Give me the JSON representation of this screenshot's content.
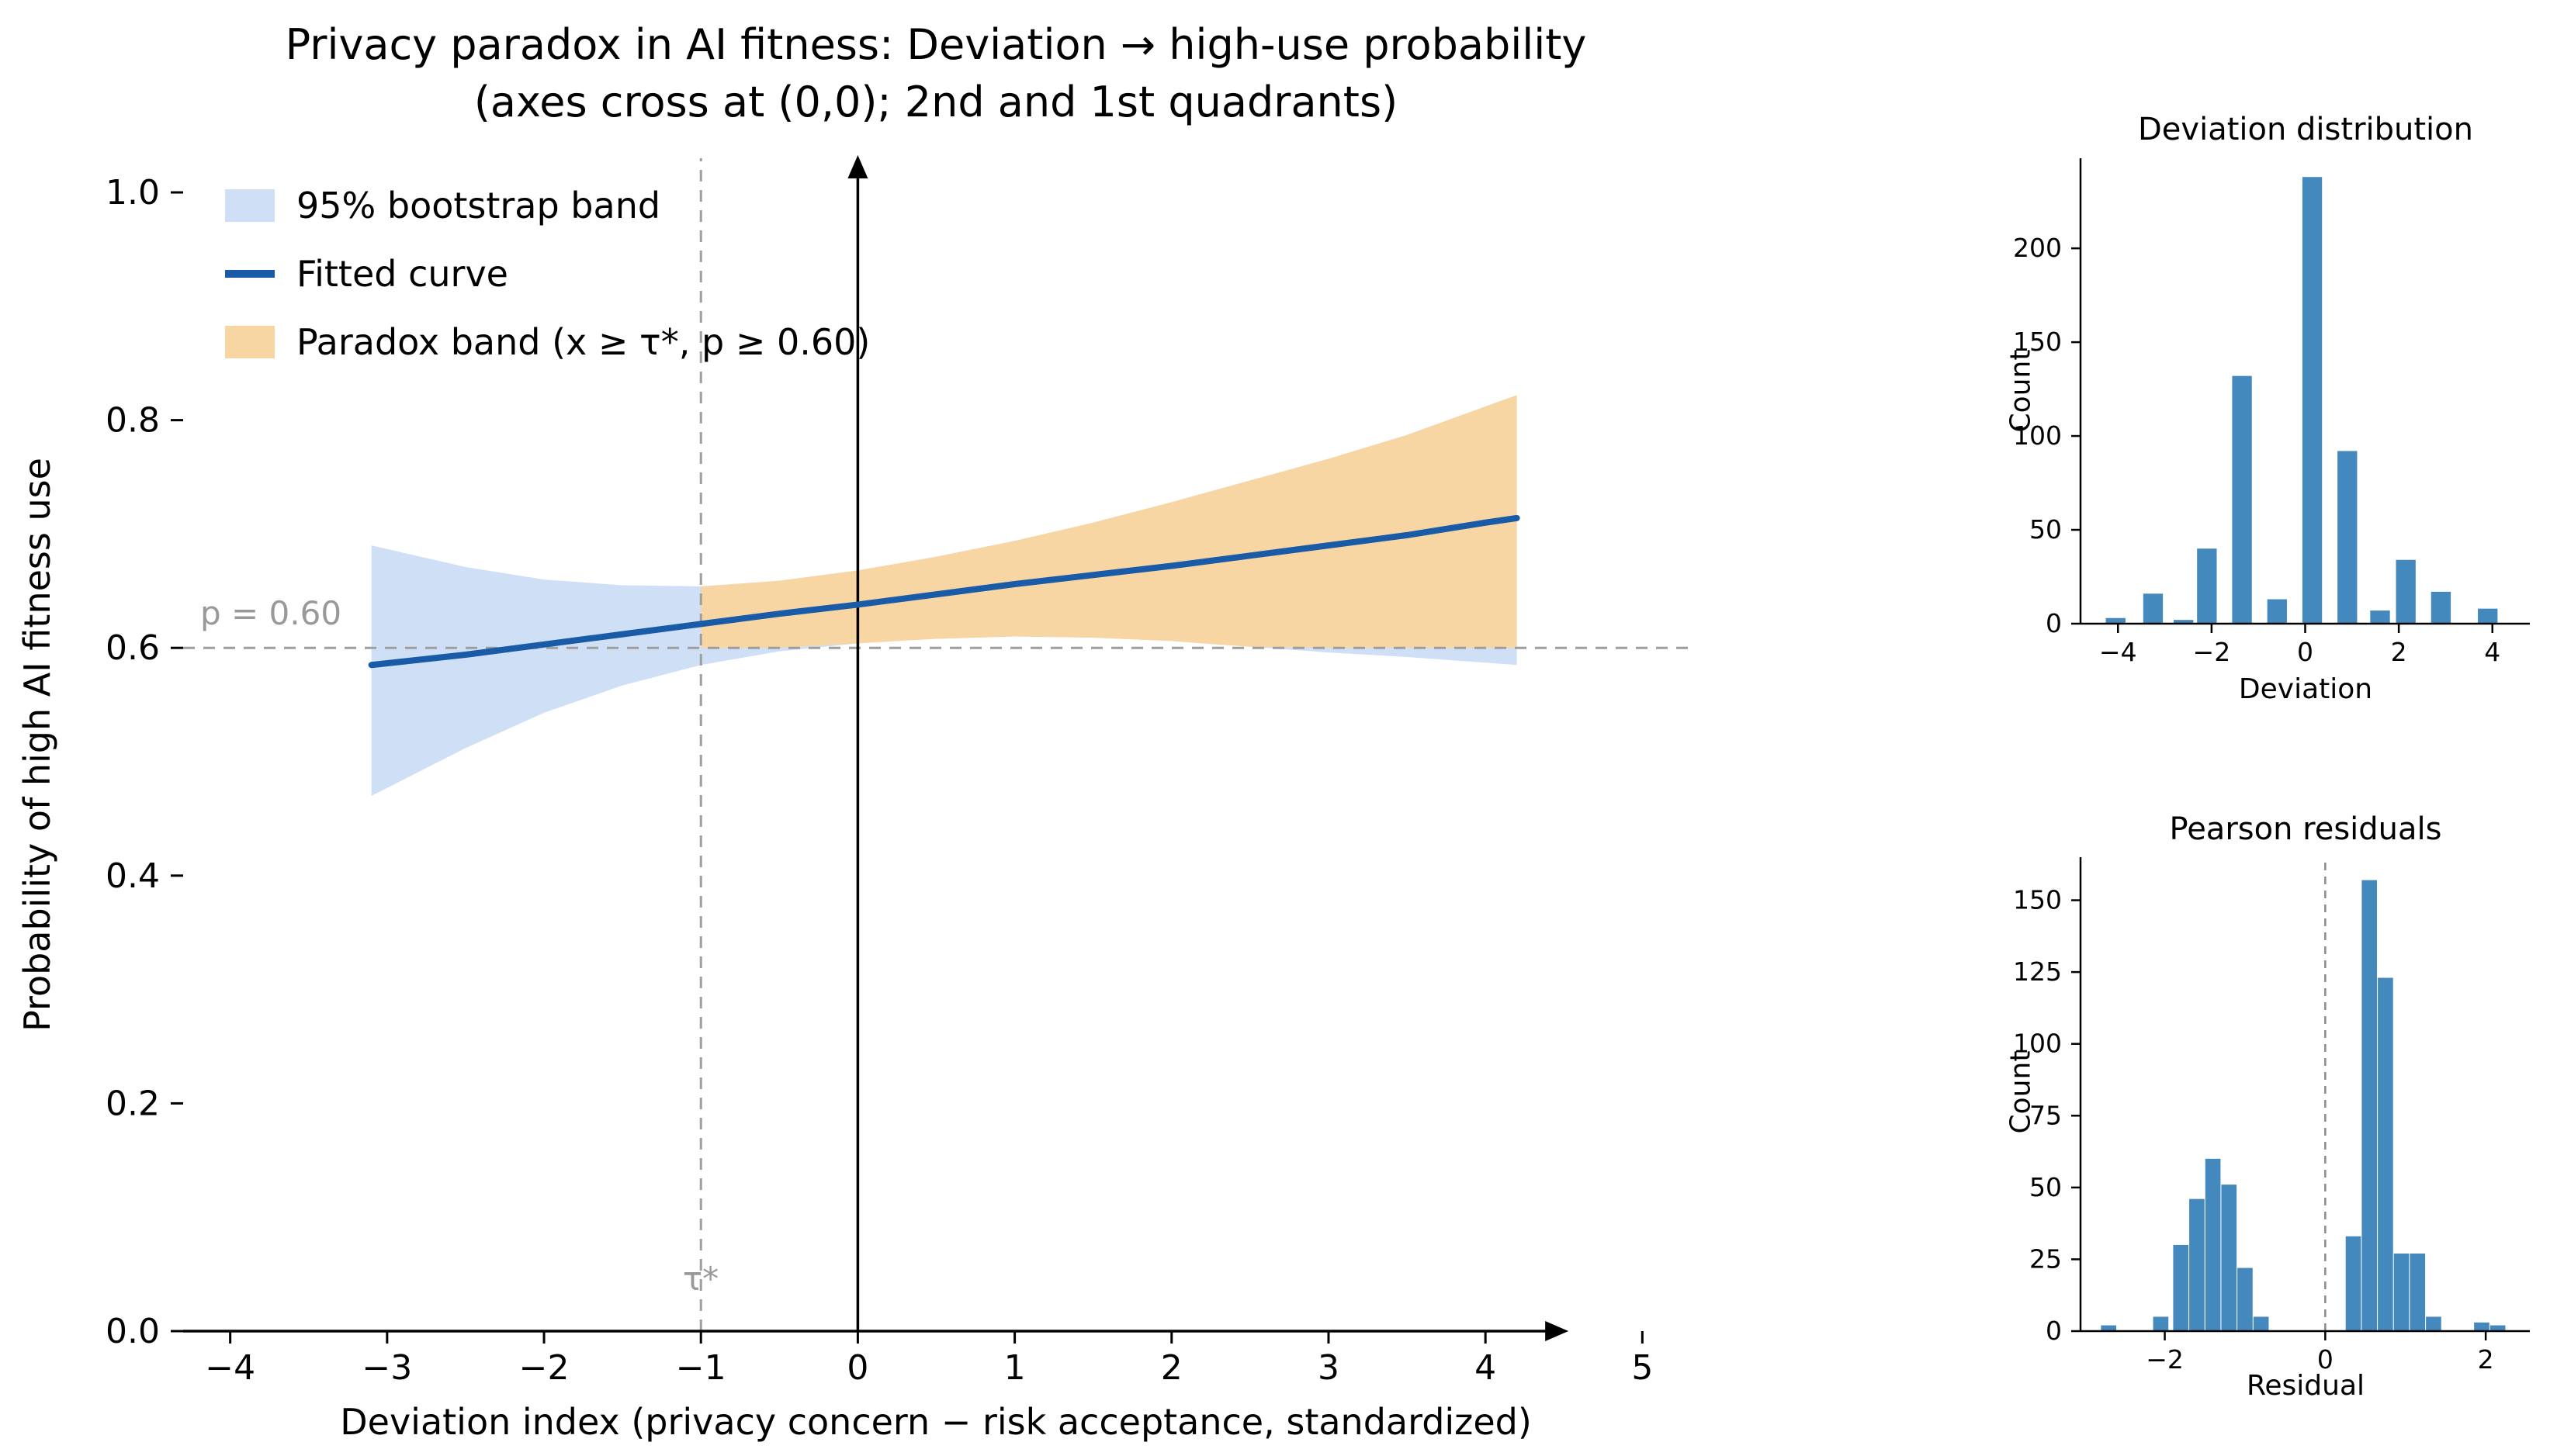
{
  "figure": {
    "background": "#ffffff",
    "text_color": "#000000"
  },
  "chart_data": [
    {
      "id": "main-curve",
      "type": "line",
      "title": "Privacy paradox in AI fitness: Deviation → high-use probability",
      "subtitle": "(axes cross at (0,0); 2nd and 1st quadrants)",
      "xlabel": "Deviation index (privacy concern − risk acceptance, standardized)",
      "ylabel": "Probability of high AI fitness use",
      "p_label": "p = 0.60",
      "tau_label": "τ*",
      "xlim": [
        -4.3,
        5.3
      ],
      "ylim": [
        0,
        1.03
      ],
      "xticks": [
        {
          "v": -4,
          "l": "−4"
        },
        {
          "v": -3,
          "l": "−3"
        },
        {
          "v": -2,
          "l": "−2"
        },
        {
          "v": -1,
          "l": "−1"
        },
        {
          "v": 0,
          "l": "0"
        },
        {
          "v": 1,
          "l": "1"
        },
        {
          "v": 2,
          "l": "2"
        },
        {
          "v": 3,
          "l": "3"
        },
        {
          "v": 4,
          "l": "4"
        },
        {
          "v": 5,
          "l": "5"
        }
      ],
      "yticks": [
        {
          "v": 0.0,
          "l": "0.0"
        },
        {
          "v": 0.2,
          "l": "0.2"
        },
        {
          "v": 0.4,
          "l": "0.4"
        },
        {
          "v": 0.6,
          "l": "0.6"
        },
        {
          "v": 0.8,
          "l": "0.8"
        },
        {
          "v": 1.0,
          "l": "1.0"
        }
      ],
      "threshold_x": -1.0,
      "p_threshold": 0.6,
      "axis_arrow_x_end": 4.45,
      "x": [
        -3.1,
        -2.5,
        -2.0,
        -1.5,
        -1.0,
        -0.5,
        0.0,
        0.5,
        1.0,
        1.5,
        2.0,
        2.5,
        3.0,
        3.5,
        4.0,
        4.2
      ],
      "fit": [
        0.585,
        0.594,
        0.603,
        0.612,
        0.621,
        0.63,
        0.638,
        0.647,
        0.656,
        0.664,
        0.672,
        0.681,
        0.69,
        0.699,
        0.71,
        0.714
      ],
      "band_lower": [
        0.47,
        0.512,
        0.543,
        0.567,
        0.585,
        0.597,
        0.604,
        0.608,
        0.61,
        0.609,
        0.606,
        0.601,
        0.596,
        0.592,
        0.587,
        0.585
      ],
      "band_upper": [
        0.69,
        0.671,
        0.66,
        0.655,
        0.654,
        0.659,
        0.668,
        0.68,
        0.694,
        0.71,
        0.728,
        0.747,
        0.766,
        0.787,
        0.812,
        0.822
      ],
      "legend": [
        {
          "type": "band",
          "label": "95% bootstrap band",
          "color": "#cfe0f6"
        },
        {
          "type": "line",
          "label": "Fitted curve",
          "color": "#1a5ba8"
        },
        {
          "type": "band",
          "label": "Paradox band (x ≥ τ*, p ≥ 0.60)",
          "color": "#f8d6a4"
        }
      ],
      "colors": {
        "band": "#cfe0f6",
        "curve": "#1a5ba8",
        "paradox": "#f8d6a4",
        "dashed": "#9e9e9e",
        "gray_text": "#999999",
        "axis": "#000000"
      }
    },
    {
      "id": "deviation-histogram",
      "type": "bar",
      "title": "Deviation distribution",
      "xlabel": "Deviation",
      "ylabel": "Count",
      "xlim": [
        -4.8,
        4.8
      ],
      "ylim": [
        0,
        248
      ],
      "xticks": [
        {
          "v": -4,
          "l": "−4"
        },
        {
          "v": -2,
          "l": "−2"
        },
        {
          "v": 0,
          "l": "0"
        },
        {
          "v": 2,
          "l": "2"
        },
        {
          "v": 4,
          "l": "4"
        }
      ],
      "yticks": [
        {
          "v": 0,
          "l": "0"
        },
        {
          "v": 50,
          "l": "50"
        },
        {
          "v": 100,
          "l": "100"
        },
        {
          "v": 150,
          "l": "150"
        },
        {
          "v": 200,
          "l": "200"
        }
      ],
      "bar_width": 0.42,
      "bars": [
        [
          -4.05,
          3
        ],
        [
          -3.25,
          16
        ],
        [
          -2.6,
          2
        ],
        [
          -2.1,
          40
        ],
        [
          -1.35,
          132
        ],
        [
          -0.6,
          13
        ],
        [
          0.15,
          238
        ],
        [
          0.9,
          92
        ],
        [
          1.6,
          7
        ],
        [
          2.15,
          34
        ],
        [
          2.9,
          17
        ],
        [
          3.9,
          8
        ]
      ],
      "color": "#4489bd"
    },
    {
      "id": "pearson-residuals-histogram",
      "type": "bar",
      "title": "Pearson residuals",
      "xlabel": "Residual",
      "ylabel": "Count",
      "xlim": [
        -3.05,
        2.55
      ],
      "ylim": [
        0,
        165
      ],
      "xticks": [
        {
          "v": -2,
          "l": "−2"
        },
        {
          "v": 0,
          "l": "0"
        },
        {
          "v": 2,
          "l": "2"
        }
      ],
      "yticks": [
        {
          "v": 0,
          "l": "0"
        },
        {
          "v": 25,
          "l": "25"
        },
        {
          "v": 50,
          "l": "50"
        },
        {
          "v": 75,
          "l": "75"
        },
        {
          "v": 100,
          "l": "100"
        },
        {
          "v": 125,
          "l": "125"
        },
        {
          "v": 150,
          "l": "150"
        }
      ],
      "bar_width": 0.19,
      "vline_x": 0,
      "bars": [
        [
          -2.7,
          2
        ],
        [
          -2.05,
          5
        ],
        [
          -1.8,
          30
        ],
        [
          -1.6,
          46
        ],
        [
          -1.4,
          60
        ],
        [
          -1.2,
          51
        ],
        [
          -1.0,
          22
        ],
        [
          -0.8,
          5
        ],
        [
          0.35,
          33
        ],
        [
          0.55,
          157
        ],
        [
          0.75,
          123
        ],
        [
          0.95,
          27
        ],
        [
          1.15,
          27
        ],
        [
          1.35,
          5
        ],
        [
          1.95,
          3
        ],
        [
          2.15,
          2
        ]
      ],
      "color": "#4489bd"
    }
  ]
}
